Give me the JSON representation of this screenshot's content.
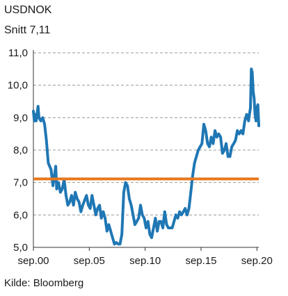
{
  "title": "USDNOK",
  "subtitle": "Snitt 7,11",
  "source": "Kilde: Bloomberg",
  "colors": {
    "series": "#1f77b4",
    "average": "#e8761d",
    "grid": "#9a9a9a",
    "axis": "#333333"
  },
  "chart_data": {
    "type": "line",
    "title": "USDNOK",
    "xlabel": "",
    "ylabel": "",
    "ylim": [
      5.0,
      11.0
    ],
    "xlim": [
      "2000-09",
      "2020-11"
    ],
    "yticks": [
      "5,0",
      "6,0",
      "7,0",
      "8,0",
      "9,0",
      "10,0",
      "11,0"
    ],
    "ytick_values": [
      5,
      6,
      7,
      8,
      9,
      10,
      11
    ],
    "xticks": [
      "sep.00",
      "sep.05",
      "sep.10",
      "sep.15",
      "sep.20"
    ],
    "xtick_values": [
      "2000-09",
      "2005-09",
      "2010-09",
      "2015-09",
      "2020-09"
    ],
    "grid": "horizontal dashed",
    "average": {
      "label": "Snitt 7,11",
      "value": 7.11
    },
    "series": [
      {
        "values": [
          [
            "2000-09",
            9.2
          ],
          [
            "2000-10",
            8.9
          ],
          [
            "2000-11",
            9.1
          ],
          [
            "2000-12",
            8.9
          ],
          [
            "2001-02",
            9.35
          ],
          [
            "2001-03",
            9.0
          ],
          [
            "2001-05",
            8.9
          ],
          [
            "2001-07",
            9.0
          ],
          [
            "2001-09",
            8.8
          ],
          [
            "2001-11",
            8.3
          ],
          [
            "2002-01",
            7.6
          ],
          [
            "2002-04",
            7.4
          ],
          [
            "2002-06",
            6.9
          ],
          [
            "2002-08",
            7.3
          ],
          [
            "2002-09",
            7.5
          ],
          [
            "2002-10",
            6.8
          ],
          [
            "2002-12",
            7.0
          ],
          [
            "2003-02",
            6.7
          ],
          [
            "2003-04",
            6.8
          ],
          [
            "2003-06",
            7.1
          ],
          [
            "2003-08",
            6.6
          ],
          [
            "2003-10",
            6.3
          ],
          [
            "2003-12",
            6.4
          ],
          [
            "2004-02",
            6.6
          ],
          [
            "2004-04",
            6.3
          ],
          [
            "2004-06",
            6.7
          ],
          [
            "2004-08",
            6.5
          ],
          [
            "2004-10",
            6.4
          ],
          [
            "2004-12",
            6.1
          ],
          [
            "2005-02",
            6.3
          ],
          [
            "2005-04",
            6.45
          ],
          [
            "2005-06",
            6.6
          ],
          [
            "2005-08",
            6.3
          ],
          [
            "2005-10",
            6.2
          ],
          [
            "2005-12",
            6.6
          ],
          [
            "2006-02",
            6.3
          ],
          [
            "2006-04",
            6.0
          ],
          [
            "2006-06",
            6.2
          ],
          [
            "2006-08",
            6.3
          ],
          [
            "2006-10",
            5.9
          ],
          [
            "2006-12",
            6.1
          ],
          [
            "2007-02",
            5.9
          ],
          [
            "2007-04",
            5.5
          ],
          [
            "2007-06",
            5.7
          ],
          [
            "2007-08",
            5.5
          ],
          [
            "2007-10",
            5.3
          ],
          [
            "2007-12",
            5.1
          ],
          [
            "2008-02",
            5.15
          ],
          [
            "2008-04",
            5.1
          ],
          [
            "2008-06",
            5.1
          ],
          [
            "2008-08",
            5.4
          ],
          [
            "2008-10",
            6.7
          ],
          [
            "2008-12",
            7.0
          ],
          [
            "2009-02",
            6.9
          ],
          [
            "2009-04",
            6.5
          ],
          [
            "2009-06",
            6.3
          ],
          [
            "2009-08",
            6.0
          ],
          [
            "2009-10",
            5.7
          ],
          [
            "2009-12",
            5.8
          ],
          [
            "2010-02",
            5.9
          ],
          [
            "2010-04",
            6.3
          ],
          [
            "2010-06",
            6.0
          ],
          [
            "2010-08",
            5.9
          ],
          [
            "2010-10",
            5.6
          ],
          [
            "2010-12",
            5.8
          ],
          [
            "2011-02",
            5.4
          ],
          [
            "2011-04",
            5.3
          ],
          [
            "2011-06",
            5.6
          ],
          [
            "2011-08",
            5.9
          ],
          [
            "2011-10",
            5.5
          ],
          [
            "2011-12",
            5.8
          ],
          [
            "2012-02",
            5.8
          ],
          [
            "2012-04",
            5.6
          ],
          [
            "2012-06",
            6.1
          ],
          [
            "2012-08",
            5.7
          ],
          [
            "2012-10",
            5.6
          ],
          [
            "2012-12",
            5.6
          ],
          [
            "2013-02",
            5.6
          ],
          [
            "2013-04",
            5.8
          ],
          [
            "2013-06",
            6.0
          ],
          [
            "2013-08",
            5.9
          ],
          [
            "2013-10",
            6.1
          ],
          [
            "2013-12",
            6.0
          ],
          [
            "2014-02",
            6.1
          ],
          [
            "2014-04",
            6.2
          ],
          [
            "2014-06",
            6.0
          ],
          [
            "2014-08",
            6.2
          ],
          [
            "2014-10",
            6.7
          ],
          [
            "2014-12",
            7.2
          ],
          [
            "2015-02",
            7.6
          ],
          [
            "2015-04",
            7.8
          ],
          [
            "2015-06",
            8.0
          ],
          [
            "2015-08",
            8.1
          ],
          [
            "2015-10",
            8.2
          ],
          [
            "2015-12",
            8.8
          ],
          [
            "2016-02",
            8.6
          ],
          [
            "2016-04",
            8.2
          ],
          [
            "2016-06",
            8.1
          ],
          [
            "2016-08",
            8.4
          ],
          [
            "2016-10",
            8.2
          ],
          [
            "2016-12",
            8.6
          ],
          [
            "2017-02",
            8.4
          ],
          [
            "2017-04",
            8.5
          ],
          [
            "2017-06",
            8.4
          ],
          [
            "2017-08",
            7.9
          ],
          [
            "2017-10",
            8.0
          ],
          [
            "2017-12",
            8.2
          ],
          [
            "2018-02",
            7.8
          ],
          [
            "2018-04",
            7.8
          ],
          [
            "2018-06",
            8.1
          ],
          [
            "2018-08",
            8.2
          ],
          [
            "2018-10",
            8.3
          ],
          [
            "2018-12",
            8.6
          ],
          [
            "2019-02",
            8.5
          ],
          [
            "2019-04",
            8.6
          ],
          [
            "2019-06",
            8.5
          ],
          [
            "2019-08",
            8.9
          ],
          [
            "2019-10",
            9.1
          ],
          [
            "2019-12",
            8.9
          ],
          [
            "2020-01",
            9.1
          ],
          [
            "2020-02",
            9.3
          ],
          [
            "2020-03",
            10.5
          ],
          [
            "2020-04",
            10.4
          ],
          [
            "2020-05",
            9.8
          ],
          [
            "2020-06",
            9.6
          ],
          [
            "2020-07",
            9.1
          ],
          [
            "2020-08",
            8.9
          ],
          [
            "2020-09",
            9.3
          ],
          [
            "2020-10",
            9.4
          ],
          [
            "2020-11",
            8.75
          ]
        ]
      }
    ]
  }
}
